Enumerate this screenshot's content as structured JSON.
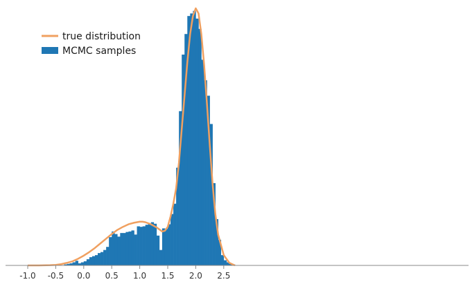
{
  "chart_data": {
    "type": "histogram",
    "title": "",
    "xlabel": "",
    "ylabel": "",
    "xlim": [
      -1.1,
      2.85
    ],
    "ylim": [
      0,
      1.0
    ],
    "grid": false,
    "legend": {
      "placement": "top-left",
      "entries": [
        {
          "name": "true distribution",
          "kind": "line",
          "color": "#f0a060"
        },
        {
          "name": "MCMC samples",
          "kind": "bar",
          "color": "#1f77b4"
        }
      ]
    },
    "xticks": [
      {
        "value": -1.0,
        "label": "-1.0"
      },
      {
        "value": -0.5,
        "label": "-0.5"
      },
      {
        "value": 0.0,
        "label": "0.0"
      },
      {
        "value": 0.5,
        "label": "0.5"
      },
      {
        "value": 1.0,
        "label": "1.0"
      },
      {
        "value": 1.5,
        "label": "1.5"
      },
      {
        "value": 2.0,
        "label": "2.0"
      },
      {
        "value": 2.5,
        "label": "2.5"
      }
    ],
    "series": [
      {
        "name": "MCMC samples",
        "type": "bar",
        "color": "#1f77b4",
        "bin_width": 0.05,
        "bin_starts": [
          -0.4,
          -0.35,
          -0.3,
          -0.25,
          -0.2,
          -0.15,
          -0.1,
          -0.05,
          0.0,
          0.05,
          0.1,
          0.15,
          0.2,
          0.25,
          0.3,
          0.35,
          0.4,
          0.45,
          0.5,
          0.55,
          0.6,
          0.65,
          0.7,
          0.75,
          0.8,
          0.85,
          0.9,
          0.95,
          1.0,
          1.05,
          1.1,
          1.15,
          1.2,
          1.25,
          1.3,
          1.35,
          1.4,
          1.45,
          1.5,
          1.55,
          1.6,
          1.65,
          1.7,
          1.75,
          1.8,
          1.85,
          1.9,
          1.95,
          2.0,
          2.05,
          2.1,
          2.15,
          2.2,
          2.25,
          2.3,
          2.35,
          2.4,
          2.45,
          2.5,
          2.55,
          2.6,
          2.65
        ],
        "values": [
          0.0,
          0.004,
          0.006,
          0.008,
          0.012,
          0.018,
          0.008,
          0.012,
          0.016,
          0.024,
          0.032,
          0.036,
          0.04,
          0.048,
          0.052,
          0.06,
          0.072,
          0.11,
          0.132,
          0.122,
          0.112,
          0.126,
          0.126,
          0.13,
          0.132,
          0.136,
          0.12,
          0.152,
          0.15,
          0.152,
          0.158,
          0.164,
          0.168,
          0.162,
          0.116,
          0.06,
          0.144,
          0.142,
          0.16,
          0.2,
          0.24,
          0.38,
          0.6,
          0.82,
          0.9,
          0.97,
          0.98,
          0.99,
          0.96,
          0.92,
          0.8,
          0.72,
          0.66,
          0.55,
          0.32,
          0.18,
          0.1,
          0.04,
          0.02,
          0.012,
          0.008,
          0.004
        ]
      },
      {
        "name": "true distribution",
        "type": "line",
        "color": "#f0a060",
        "x": [
          -1.0,
          -0.8,
          -0.6,
          -0.5,
          -0.4,
          -0.3,
          -0.2,
          -0.1,
          0.0,
          0.1,
          0.2,
          0.3,
          0.4,
          0.5,
          0.6,
          0.7,
          0.8,
          0.9,
          1.0,
          1.05,
          1.1,
          1.2,
          1.3,
          1.35,
          1.4,
          1.45,
          1.5,
          1.55,
          1.6,
          1.65,
          1.7,
          1.75,
          1.8,
          1.85,
          1.9,
          1.95,
          2.0,
          2.05,
          2.1,
          2.15,
          2.2,
          2.25,
          2.3,
          2.35,
          2.4,
          2.5,
          2.6,
          2.7
        ],
        "y": [
          0.0,
          0.0,
          0.001,
          0.002,
          0.005,
          0.01,
          0.016,
          0.026,
          0.038,
          0.052,
          0.068,
          0.086,
          0.104,
          0.122,
          0.138,
          0.15,
          0.16,
          0.166,
          0.17,
          0.17,
          0.168,
          0.16,
          0.148,
          0.14,
          0.132,
          0.135,
          0.15,
          0.19,
          0.24,
          0.3,
          0.4,
          0.53,
          0.66,
          0.79,
          0.9,
          0.97,
          1.0,
          0.98,
          0.9,
          0.78,
          0.63,
          0.47,
          0.32,
          0.2,
          0.12,
          0.04,
          0.01,
          0.0
        ]
      }
    ]
  }
}
